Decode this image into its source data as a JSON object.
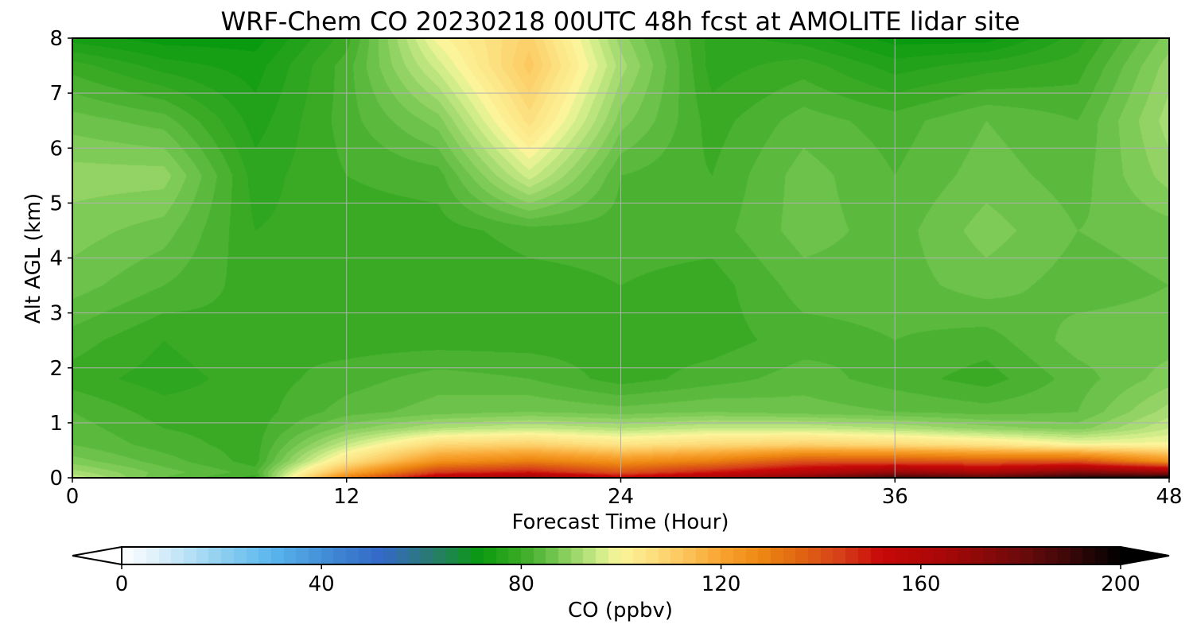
{
  "chart_data": {
    "type": "heatmap",
    "title": "WRF-Chem CO  20230218 00UTC 48h fcst at AMOLITE lidar site",
    "xlabel": "Forecast Time (Hour)",
    "ylabel": "Alt AGL (km)",
    "xlim": [
      0,
      48
    ],
    "ylim": [
      0,
      8
    ],
    "xticks": [
      0,
      12,
      24,
      36,
      48
    ],
    "yticks": [
      0,
      1,
      2,
      3,
      4,
      5,
      6,
      7,
      8
    ],
    "grid": true,
    "colorbar": {
      "label": "CO  (ppbv)",
      "range": [
        0,
        200
      ],
      "ticks": [
        0,
        40,
        80,
        120,
        160,
        200
      ],
      "extend": "both",
      "orientation": "horizontal",
      "placement": "bottom",
      "stops": [
        {
          "v": 0,
          "color": "#ffffff"
        },
        {
          "v": 8,
          "color": "#d9eefa"
        },
        {
          "v": 20,
          "color": "#8fd0f0"
        },
        {
          "v": 30,
          "color": "#5ab6ec"
        },
        {
          "v": 44,
          "color": "#3c82d0"
        },
        {
          "v": 52,
          "color": "#3468c8"
        },
        {
          "v": 62,
          "color": "#2a7a70"
        },
        {
          "v": 72,
          "color": "#0a9a10"
        },
        {
          "v": 80,
          "color": "#3aaa24"
        },
        {
          "v": 86,
          "color": "#6cc24a"
        },
        {
          "v": 92,
          "color": "#a6dc72"
        },
        {
          "v": 97,
          "color": "#dcf190"
        },
        {
          "v": 100,
          "color": "#fcf49a"
        },
        {
          "v": 106,
          "color": "#fce080"
        },
        {
          "v": 112,
          "color": "#fcc860"
        },
        {
          "v": 120,
          "color": "#f8a430"
        },
        {
          "v": 128,
          "color": "#ee8812"
        },
        {
          "v": 136,
          "color": "#e06412"
        },
        {
          "v": 144,
          "color": "#d6401a"
        },
        {
          "v": 152,
          "color": "#c80808"
        },
        {
          "v": 166,
          "color": "#a40808"
        },
        {
          "v": 180,
          "color": "#6c0a0a"
        },
        {
          "v": 190,
          "color": "#3a0808"
        },
        {
          "v": 200,
          "color": "#000000"
        }
      ]
    },
    "times": [
      0,
      4,
      8,
      12,
      16,
      20,
      24,
      28,
      32,
      36,
      40,
      44,
      48
    ],
    "altitudes": [
      0,
      0.1,
      0.3,
      0.6,
      0.9,
      1.2,
      1.8,
      2.5,
      3.5,
      4.5,
      5.5,
      6.5,
      7.5,
      8
    ],
    "values": [
      [
        95,
        85,
        80,
        130,
        160,
        170,
        155,
        165,
        175,
        190,
        185,
        195,
        200
      ],
      [
        92,
        86,
        82,
        118,
        145,
        150,
        140,
        150,
        160,
        170,
        165,
        175,
        170
      ],
      [
        88,
        84,
        80,
        105,
        125,
        130,
        125,
        130,
        140,
        140,
        138,
        140,
        125
      ],
      [
        85,
        82,
        80,
        95,
        108,
        110,
        105,
        108,
        110,
        108,
        105,
        100,
        100
      ],
      [
        84,
        81,
        80,
        88,
        93,
        95,
        93,
        95,
        95,
        93,
        90,
        88,
        95
      ],
      [
        83,
        80,
        80,
        84,
        86,
        87,
        86,
        87,
        86,
        85,
        84,
        85,
        92
      ],
      [
        80,
        78,
        80,
        82,
        84,
        83,
        80,
        82,
        84,
        82,
        80,
        84,
        88
      ],
      [
        82,
        79,
        81,
        80,
        80,
        80,
        80,
        80,
        82,
        83,
        82,
        86,
        86
      ],
      [
        86,
        83,
        80,
        80,
        79,
        80,
        81,
        80,
        84,
        84,
        86,
        84,
        85
      ],
      [
        88,
        86,
        79,
        80,
        80,
        82,
        82,
        82,
        86,
        84,
        88,
        85,
        86
      ],
      [
        90,
        90,
        78,
        81,
        82,
        96,
        83,
        81,
        86,
        83,
        86,
        84,
        90
      ],
      [
        86,
        84,
        76,
        82,
        88,
        106,
        88,
        80,
        84,
        82,
        85,
        83,
        92
      ],
      [
        80,
        76,
        74,
        82,
        96,
        112,
        92,
        78,
        80,
        76,
        78,
        80,
        90
      ],
      [
        74,
        72,
        72,
        80,
        100,
        110,
        90,
        78,
        76,
        72,
        72,
        78,
        88
      ]
    ]
  }
}
